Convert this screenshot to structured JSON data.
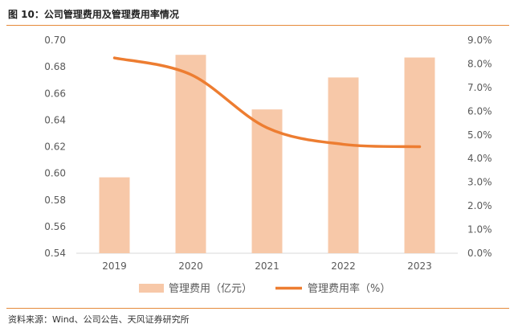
{
  "figure": {
    "title": "图 10：公司管理费用及管理费用率情况",
    "source": "资料来源：Wind、公司公告、天风证券研究所"
  },
  "colors": {
    "bar": "#f7c8a8",
    "line": "#ed7d31",
    "rule": "#e58a3a",
    "tick": "#595959"
  },
  "chart_data": {
    "type": "bar",
    "categories": [
      "2019",
      "2020",
      "2021",
      "2022",
      "2023"
    ],
    "series": [
      {
        "name": "管理费用（亿元）",
        "type": "bar",
        "axis": "left",
        "values": [
          0.597,
          0.689,
          0.648,
          0.672,
          0.687
        ]
      },
      {
        "name": "管理费用率（%）",
        "type": "line",
        "axis": "right",
        "smooth": true,
        "values": [
          8.25,
          7.55,
          5.3,
          4.6,
          4.5
        ]
      }
    ],
    "left_axis": {
      "ylim": [
        0.54,
        0.7
      ],
      "ticks": [
        "0.54",
        "0.56",
        "0.58",
        "0.60",
        "0.62",
        "0.64",
        "0.66",
        "0.68",
        "0.70"
      ]
    },
    "right_axis": {
      "ylim": [
        0,
        9
      ],
      "ticks": [
        "0.0%",
        "1.0%",
        "2.0%",
        "3.0%",
        "4.0%",
        "5.0%",
        "6.0%",
        "7.0%",
        "8.0%",
        "9.0%"
      ]
    },
    "legend": [
      "管理费用（亿元）",
      "管理费用率（%）"
    ],
    "legend_position": "bottom",
    "grid": false
  }
}
